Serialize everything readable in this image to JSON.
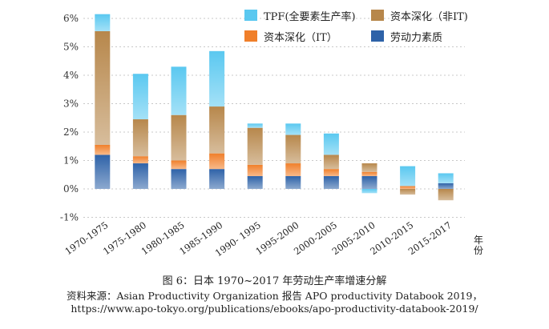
{
  "chart_data": {
    "type": "bar",
    "stacked": true,
    "categories": [
      "1970-1975",
      "1975-1980",
      "1980-1985",
      "1985-1990",
      "1990- 1995",
      "1995-2000",
      "2000-2005",
      "2005-2010",
      "2010-2015",
      "2015-2017"
    ],
    "x_unit_label": "年份",
    "y_ticks": [
      "-1%",
      "0%",
      "1%",
      "2%",
      "3%",
      "4%",
      "5%",
      "6%"
    ],
    "ylim": [
      -1,
      6
    ],
    "grid": "horizontal dashed",
    "legend_position": "top-right",
    "series": [
      {
        "name": "劳动力素质",
        "color": "#2e62a8",
        "values": [
          1.2,
          0.9,
          0.7,
          0.7,
          0.45,
          0.45,
          0.45,
          0.45,
          0.0,
          0.2
        ]
      },
      {
        "name": "资本深化（IT）",
        "color": "#f07f2a",
        "values": [
          0.35,
          0.25,
          0.3,
          0.55,
          0.4,
          0.45,
          0.25,
          0.15,
          0.1,
          0.0
        ]
      },
      {
        "name": "资本深化（非IT)",
        "color": "#b7874b",
        "values": [
          4.0,
          1.3,
          1.6,
          1.65,
          1.3,
          1.0,
          0.5,
          0.3,
          -0.2,
          -0.4
        ]
      },
      {
        "name": "TPF(全要素生产率)",
        "color": "#5ac8f0",
        "values": [
          0.6,
          1.6,
          1.7,
          1.95,
          0.15,
          0.4,
          0.75,
          -0.15,
          0.7,
          0.35
        ]
      }
    ]
  },
  "caption": {
    "title": "图 6：日本 1970~2017 年劳动生产率增速分解",
    "source": "资料来源：Asian Productivity Organization 报告 APO productivity Databook 2019，",
    "url": "https://www.apo-tokyo.org/publications/ebooks/apo-productivity-databook-2019/"
  }
}
